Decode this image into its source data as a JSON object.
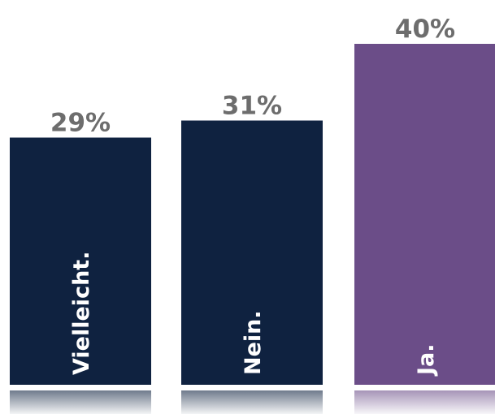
{
  "chart_data": {
    "type": "bar",
    "categories": [
      "Vielleicht.",
      "Nein.",
      "Ja."
    ],
    "values": [
      29,
      31,
      40
    ],
    "value_labels": [
      "29%",
      "31%",
      "40%"
    ],
    "unit": "%",
    "title": "",
    "xlabel": "",
    "ylabel": "",
    "ylim": [
      0,
      40
    ],
    "grid": false,
    "legend": "none",
    "colors": [
      "#0f2240",
      "#0f2240",
      "#6b4d88"
    ],
    "category_label_color": "#ffffff",
    "value_label_color": "#6d6d6d",
    "reflection": true
  }
}
